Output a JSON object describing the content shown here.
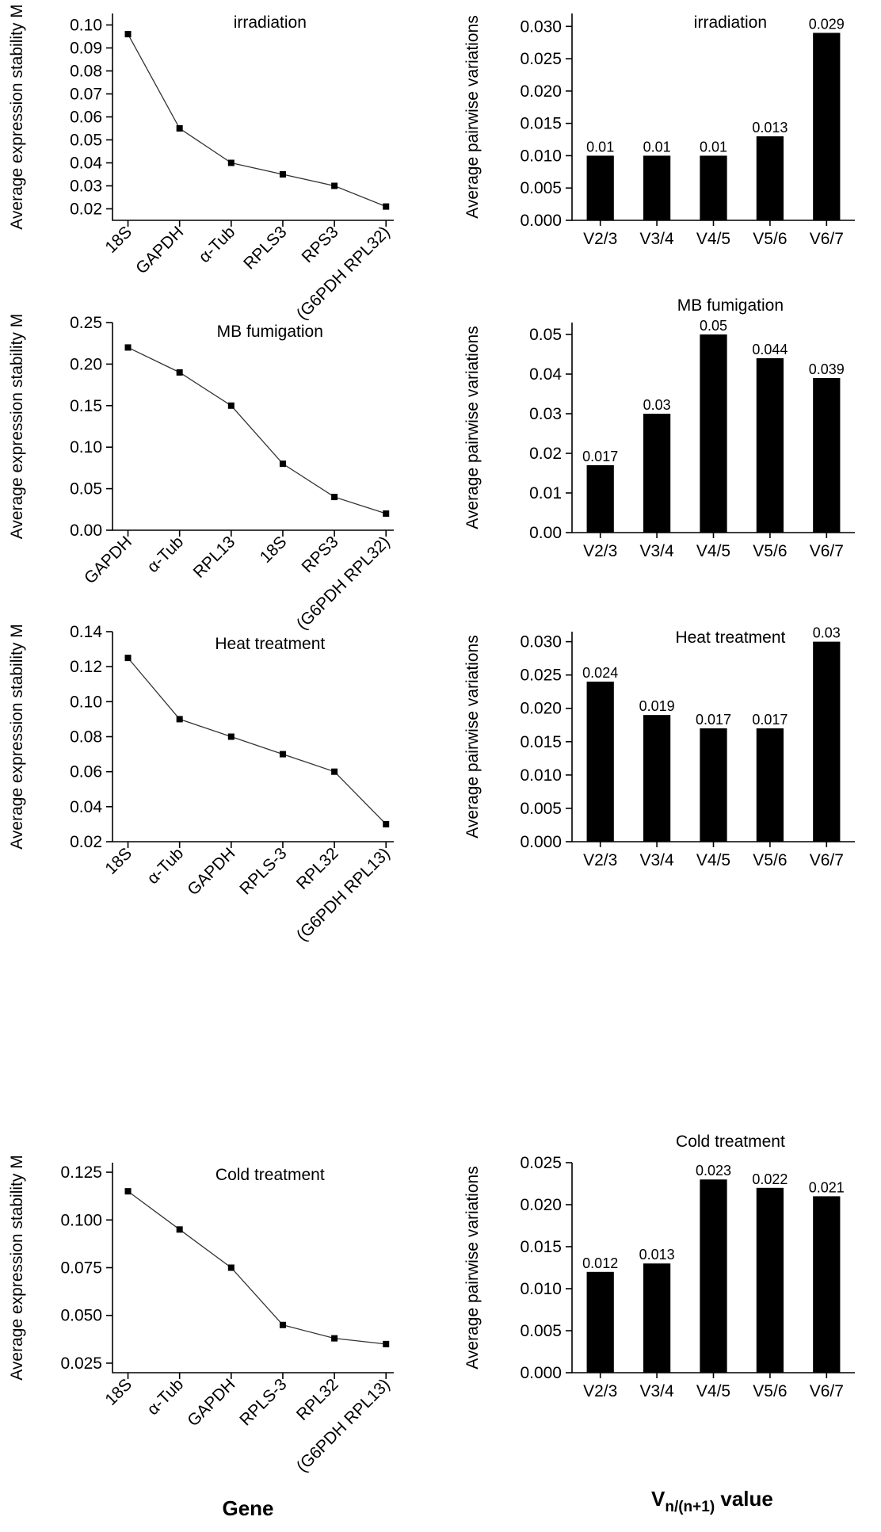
{
  "footer": {
    "gene_title": "Gene",
    "v_title_main": "V",
    "v_title_sub": "n/(n+1)",
    "v_title_rest": " value"
  },
  "chart_data": [
    {
      "type": "line",
      "title": "irradiation",
      "ylabel": "Average expression stability M",
      "xlabel": "",
      "categories": [
        "18S",
        "GAPDH",
        "α-Tub",
        "RPLS3",
        "RPS3",
        "(G6PDH RPL32)"
      ],
      "values": [
        0.096,
        0.055,
        0.04,
        0.035,
        0.03,
        0.021
      ],
      "ylim": [
        0.015,
        0.105
      ],
      "yticks": [
        0.02,
        0.03,
        0.04,
        0.05,
        0.06,
        0.07,
        0.08,
        0.09,
        0.1
      ],
      "tick_labels": [
        "0.02",
        "0.03",
        "0.04",
        "0.05",
        "0.06",
        "0.07",
        "0.08",
        "0.09",
        "0.10"
      ]
    },
    {
      "type": "bar",
      "title": "irradiation",
      "ylabel": "Average pairwise variations",
      "xlabel": "",
      "categories": [
        "V2/3",
        "V3/4",
        "V4/5",
        "V5/6",
        "V6/7"
      ],
      "values": [
        0.01,
        0.01,
        0.01,
        0.013,
        0.029
      ],
      "data_labels": [
        "0.01",
        "0.01",
        "0.01",
        "0.013",
        "0.029"
      ],
      "ylim": [
        0,
        0.032
      ],
      "yticks": [
        0,
        0.005,
        0.01,
        0.015,
        0.02,
        0.025,
        0.03
      ],
      "tick_labels": [
        "0.000",
        "0.005",
        "0.010",
        "0.015",
        "0.020",
        "0.025",
        "0.030"
      ]
    },
    {
      "type": "line",
      "title": "MB fumigation",
      "ylabel": "Average expression stability M",
      "xlabel": "",
      "categories": [
        "GAPDH",
        "α-Tub",
        "RPL13",
        "18S",
        "RPS3",
        "(G6PDH RPL32)"
      ],
      "values": [
        0.22,
        0.19,
        0.15,
        0.08,
        0.04,
        0.02
      ],
      "ylim": [
        0,
        0.25
      ],
      "yticks": [
        0,
        0.05,
        0.1,
        0.15,
        0.2,
        0.25
      ],
      "tick_labels": [
        "0.00",
        "0.05",
        "0.10",
        "0.15",
        "0.20",
        "0.25"
      ]
    },
    {
      "type": "bar",
      "title": "MB fumigation",
      "ylabel": "Average pairwise variations",
      "xlabel": "",
      "categories": [
        "V2/3",
        "V3/4",
        "V4/5",
        "V5/6",
        "V6/7"
      ],
      "values": [
        0.017,
        0.03,
        0.05,
        0.044,
        0.039
      ],
      "data_labels": [
        "0.017",
        "0.03",
        "0.05",
        "0.044",
        "0.039"
      ],
      "ylim": [
        0,
        0.053
      ],
      "yticks": [
        0,
        0.01,
        0.02,
        0.03,
        0.04,
        0.05
      ],
      "tick_labels": [
        "0.00",
        "0.01",
        "0.02",
        "0.03",
        "0.04",
        "0.05"
      ]
    },
    {
      "type": "line",
      "title": "Heat treatment",
      "ylabel": "Average expression stability M",
      "xlabel": "",
      "categories": [
        "18S",
        "α-Tub",
        "GAPDH",
        "RPLS-3",
        "RPL32",
        "(G6PDH RPL13)"
      ],
      "values": [
        0.125,
        0.09,
        0.08,
        0.07,
        0.06,
        0.03
      ],
      "ylim": [
        0.02,
        0.14
      ],
      "yticks": [
        0.02,
        0.04,
        0.06,
        0.08,
        0.1,
        0.12,
        0.14
      ],
      "tick_labels": [
        "0.02",
        "0.04",
        "0.06",
        "0.08",
        "0.10",
        "0.12",
        "0.14"
      ]
    },
    {
      "type": "bar",
      "title": "Heat treatment",
      "ylabel": "Average pairwise variations",
      "xlabel": "",
      "categories": [
        "V2/3",
        "V3/4",
        "V4/5",
        "V5/6",
        "V6/7"
      ],
      "values": [
        0.024,
        0.019,
        0.017,
        0.017,
        0.03
      ],
      "data_labels": [
        "0.024",
        "0.019",
        "0.017",
        "0.017",
        "0.03"
      ],
      "ylim": [
        0,
        0.0315
      ],
      "yticks": [
        0,
        0.005,
        0.01,
        0.015,
        0.02,
        0.025,
        0.03
      ],
      "tick_labels": [
        "0.000",
        "0.005",
        "0.010",
        "0.015",
        "0.020",
        "0.025",
        "0.030"
      ]
    },
    {
      "type": "line",
      "title": "Cold treatment",
      "ylabel": "Average expression stability M",
      "xlabel": "",
      "categories": [
        "18S",
        "α-Tub",
        "GAPDH",
        "RPLS-3",
        "RPL32",
        "(G6PDH RPL13)"
      ],
      "values": [
        0.115,
        0.095,
        0.075,
        0.045,
        0.038,
        0.035
      ],
      "ylim": [
        0.02,
        0.13
      ],
      "yticks": [
        0.025,
        0.05,
        0.075,
        0.1,
        0.125
      ],
      "tick_labels": [
        "0.025",
        "0.050",
        "0.075",
        "0.100",
        "0.125"
      ]
    },
    {
      "type": "bar",
      "title": "Cold treatment",
      "ylabel": "Average pairwise variations",
      "xlabel": "",
      "categories": [
        "V2/3",
        "V3/4",
        "V4/5",
        "V5/6",
        "V6/7"
      ],
      "values": [
        0.012,
        0.013,
        0.023,
        0.022,
        0.021
      ],
      "data_labels": [
        "0.012",
        "0.013",
        "0.023",
        "0.022",
        "0.021"
      ],
      "ylim": [
        0,
        0.025
      ],
      "yticks": [
        0,
        0.005,
        0.01,
        0.015,
        0.02,
        0.025
      ],
      "tick_labels": [
        "0.000",
        "0.005",
        "0.010",
        "0.015",
        "0.020",
        "0.025"
      ]
    }
  ]
}
